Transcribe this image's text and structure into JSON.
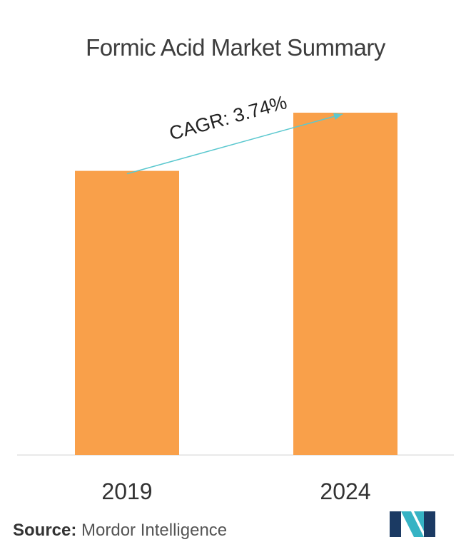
{
  "chart_data": {
    "type": "bar",
    "title": "Formic Acid Market Summary",
    "categories": [
      "2019",
      "2024"
    ],
    "values": [
      83,
      100
    ],
    "ylim": [
      0,
      100
    ],
    "xlabel": "",
    "ylabel": "",
    "grid": false,
    "legend": "none",
    "bar_color": "#f9a04a",
    "annotation": {
      "label": "CAGR: 3.74%",
      "arrow_color": "#5bc8cf",
      "from_category": "2019",
      "to_category": "2024"
    }
  },
  "source": {
    "prefix": "Source:",
    "text": "Mordor Intelligence"
  },
  "logo": {
    "name": "mordor-intelligence-logo",
    "colors": [
      "#1b3a63",
      "#36b3c4"
    ]
  }
}
